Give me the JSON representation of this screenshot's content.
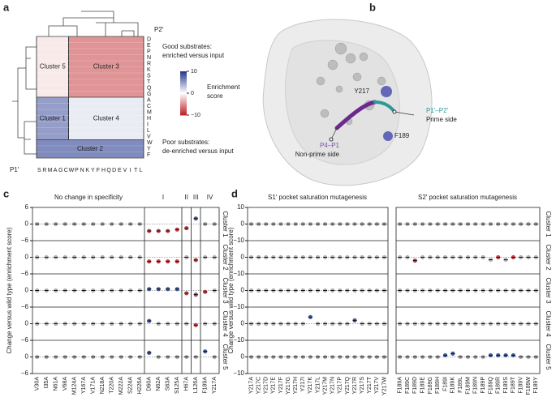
{
  "panel_letters": [
    "a",
    "b",
    "c",
    "d"
  ],
  "panel_a": {
    "row_axis": "P2′",
    "col_axis": "P1′",
    "rows": [
      "D",
      "E",
      "P",
      "N",
      "R",
      "K",
      "S",
      "T",
      "Q",
      "G",
      "A",
      "C",
      "M",
      "H",
      "I",
      "L",
      "V",
      "W",
      "Y",
      "F"
    ],
    "cols": [
      "S",
      "R",
      "M",
      "A",
      "G",
      "C",
      "W",
      "P",
      "N",
      "K",
      "Y",
      "F",
      "H",
      "Q",
      "D",
      "E",
      "V",
      "I",
      "T",
      "L"
    ],
    "blocks": [
      {
        "label": "Cluster 5",
        "value": -1
      },
      {
        "label": "Cluster 3",
        "value": -5
      },
      {
        "label": "Cluster 1",
        "value": 5
      },
      {
        "label": "Cluster 4",
        "value": 1
      },
      {
        "label": "Cluster 2",
        "value": 6
      }
    ],
    "good": [
      "Good substrates:",
      "enriched versus input"
    ],
    "poor": [
      "Poor substrates:",
      "de-enriched versus input"
    ],
    "colorbar_label": [
      "Enrichment",
      "score"
    ],
    "colorbar_lim": [
      -10,
      10
    ],
    "colorbar_ticks": [
      {
        "value": 10,
        "label": "10"
      },
      0,
      {
        "value": -10,
        "label": "−10"
      }
    ],
    "colors": {
      "low": "#c0282d",
      "mid": "#ffffff",
      "high": "#2b3d93"
    }
  },
  "panel_b": {
    "residue_1": "Y217",
    "residue_2": "F189",
    "prime_label": "P1′–P2′",
    "prime_side": "Prime side",
    "nonprime_label": "P4–P1",
    "nonprime_side": "Non-prime side"
  },
  "panel_c": {
    "title": "No change in specificity",
    "groups": [
      "I",
      "II",
      "III",
      "IV"
    ],
    "y_label": "Change versus wild type (enrichment score)",
    "clusters": [
      "Cluster 1",
      "Cluster 2",
      "Cluster 3",
      "Cluster 4",
      "Cluster 5"
    ],
    "ylim": [
      -6,
      6
    ],
    "yticks": [
      {
        "value": -6,
        "label": "−6"
      },
      0,
      6
    ],
    "palette": {
      "g": "#a3a3a3",
      "r": "#b5232a",
      "b": "#27408b"
    },
    "mutants": [
      "V30A",
      "I35A",
      "N61A",
      "V68A",
      "M124A",
      "Y167A",
      "V171A",
      "N218A",
      "T220A",
      "M222A",
      "S224A",
      "H226A",
      "D60A",
      "N62A",
      "S63A",
      "S125A",
      "H67A",
      "L126A",
      "F189A",
      "Y217A"
    ],
    "rows": [
      {
        "values": [
          0,
          0,
          0,
          0,
          0,
          0,
          0,
          0,
          0,
          0,
          0,
          0,
          -2.5,
          -2.5,
          -2.5,
          -2,
          -1.5,
          2,
          0,
          0
        ],
        "colors": "ggggggggggggrrrrrbgg"
      },
      {
        "values": [
          0,
          0,
          0,
          0,
          0,
          0,
          0,
          0,
          0,
          0,
          0,
          0,
          -1.5,
          -1.5,
          -1.5,
          -1.5,
          0,
          -1,
          0,
          0
        ],
        "colors": "ggggggggggggrrrrgrgg"
      },
      {
        "values": [
          0,
          0,
          0,
          0,
          0,
          0,
          0,
          0,
          0,
          0,
          0,
          0,
          0.5,
          0.5,
          0.5,
          0.5,
          -1,
          -1.5,
          -0.5,
          0
        ],
        "colors": "ggggggggggggbbbbrrrg"
      },
      {
        "values": [
          0,
          0,
          0,
          0,
          0,
          0,
          0,
          0,
          0,
          0,
          0,
          0,
          1,
          0,
          0,
          0,
          0,
          -0.5,
          0,
          0
        ],
        "colors": "ggggggggggggbggggrgg"
      },
      {
        "values": [
          0,
          0,
          0,
          0,
          0,
          0,
          0,
          0,
          0,
          0,
          0,
          0,
          1.5,
          0,
          0,
          0,
          0,
          0,
          2,
          0
        ],
        "colors": "ggggggggggggbgggggbg"
      }
    ]
  },
  "panel_d": {
    "y_label": "Change versus wild type (enrichment score)",
    "clusters": [
      "Cluster 1",
      "Cluster 2",
      "Cluster 3",
      "Cluster 4",
      "Cluster 5"
    ],
    "ylim": [
      -10,
      10
    ],
    "yticks": [
      {
        "value": -10,
        "label": "−10"
      },
      0,
      10
    ],
    "palette": {
      "g": "#a3a3a3",
      "r": "#b5232a",
      "b": "#27408b"
    },
    "s1": {
      "title": "S1′ pocket saturation mutagenesis",
      "mutants": [
        "Y217A",
        "Y217C",
        "Y217D",
        "Y217E",
        "Y217F",
        "Y217G",
        "Y217H",
        "Y217I",
        "Y217K",
        "Y217L",
        "Y217M",
        "Y217N",
        "Y217P",
        "Y217Q",
        "Y217R",
        "Y217S",
        "Y217T",
        "Y217V",
        "Y217W"
      ],
      "rows": [
        {
          "values": [
            0,
            0,
            0,
            0,
            0,
            0,
            0,
            0,
            0,
            0,
            0,
            0,
            0,
            0,
            0,
            0,
            0,
            0,
            0
          ],
          "colors": "ggggggggggggggggggg"
        },
        {
          "values": [
            0,
            0,
            0,
            0,
            0,
            0,
            0,
            0,
            0,
            0,
            0,
            0,
            0,
            0,
            0,
            0,
            0,
            0,
            0
          ],
          "colors": "ggggggggggggggggggg"
        },
        {
          "values": [
            0,
            0,
            0,
            0,
            0,
            0,
            0,
            0,
            0,
            0,
            0,
            0,
            0,
            0,
            0,
            0,
            0,
            0,
            0
          ],
          "colors": "ggggggggggggggggggg"
        },
        {
          "values": [
            0,
            0,
            0,
            0,
            0,
            0,
            0,
            0,
            4,
            0,
            0,
            0,
            0,
            0,
            2,
            0,
            0,
            0,
            0
          ],
          "colors": "ggggggggbgggggbgggg"
        },
        {
          "values": [
            0,
            0,
            0,
            0,
            0,
            0,
            0,
            0,
            0,
            0,
            0,
            0,
            0,
            0,
            0,
            0,
            0,
            0,
            0
          ],
          "colors": "ggggggggggggggggggg"
        }
      ]
    },
    "s2": {
      "title": "S2′ pocket saturation mutagenesis",
      "mutants": [
        "F189A",
        "F189C",
        "F189D",
        "F189E",
        "F189G",
        "F189H",
        "F189I",
        "F189K",
        "F189L",
        "F189M",
        "F189N",
        "F189P",
        "F189Q",
        "F189R",
        "F189S",
        "F189T",
        "F189V",
        "F189W",
        "F189Y"
      ],
      "rows": [
        {
          "values": [
            0,
            0,
            0,
            0,
            0,
            0,
            0,
            0,
            0,
            0,
            0,
            0,
            0,
            0,
            0,
            0,
            0,
            0,
            0
          ],
          "colors": "ggggggggggggggggggg"
        },
        {
          "values": [
            0,
            0,
            -2,
            0,
            0,
            0,
            0,
            0,
            0,
            0,
            0,
            0,
            -1.5,
            0,
            -1.5,
            0,
            0,
            0,
            0
          ],
          "colors": "ggrggggggggggrgrggg"
        },
        {
          "values": [
            0,
            0,
            0,
            0,
            0,
            0,
            0,
            0,
            0,
            0,
            0,
            0,
            0,
            0,
            0,
            0,
            0,
            0,
            0
          ],
          "colors": "ggggggggggggggggggg"
        },
        {
          "values": [
            0,
            0,
            0,
            0,
            0,
            0,
            0,
            0,
            0,
            0,
            0,
            0,
            0,
            0,
            0,
            0,
            0,
            0,
            0
          ],
          "colors": "ggggggggggggggggggg"
        },
        {
          "values": [
            0,
            0,
            0,
            0,
            0,
            0,
            1,
            2,
            0,
            0,
            0,
            0,
            1,
            1,
            1,
            1,
            0,
            0,
            0
          ],
          "colors": "ggggggbbggggbbbbggg"
        }
      ]
    }
  }
}
